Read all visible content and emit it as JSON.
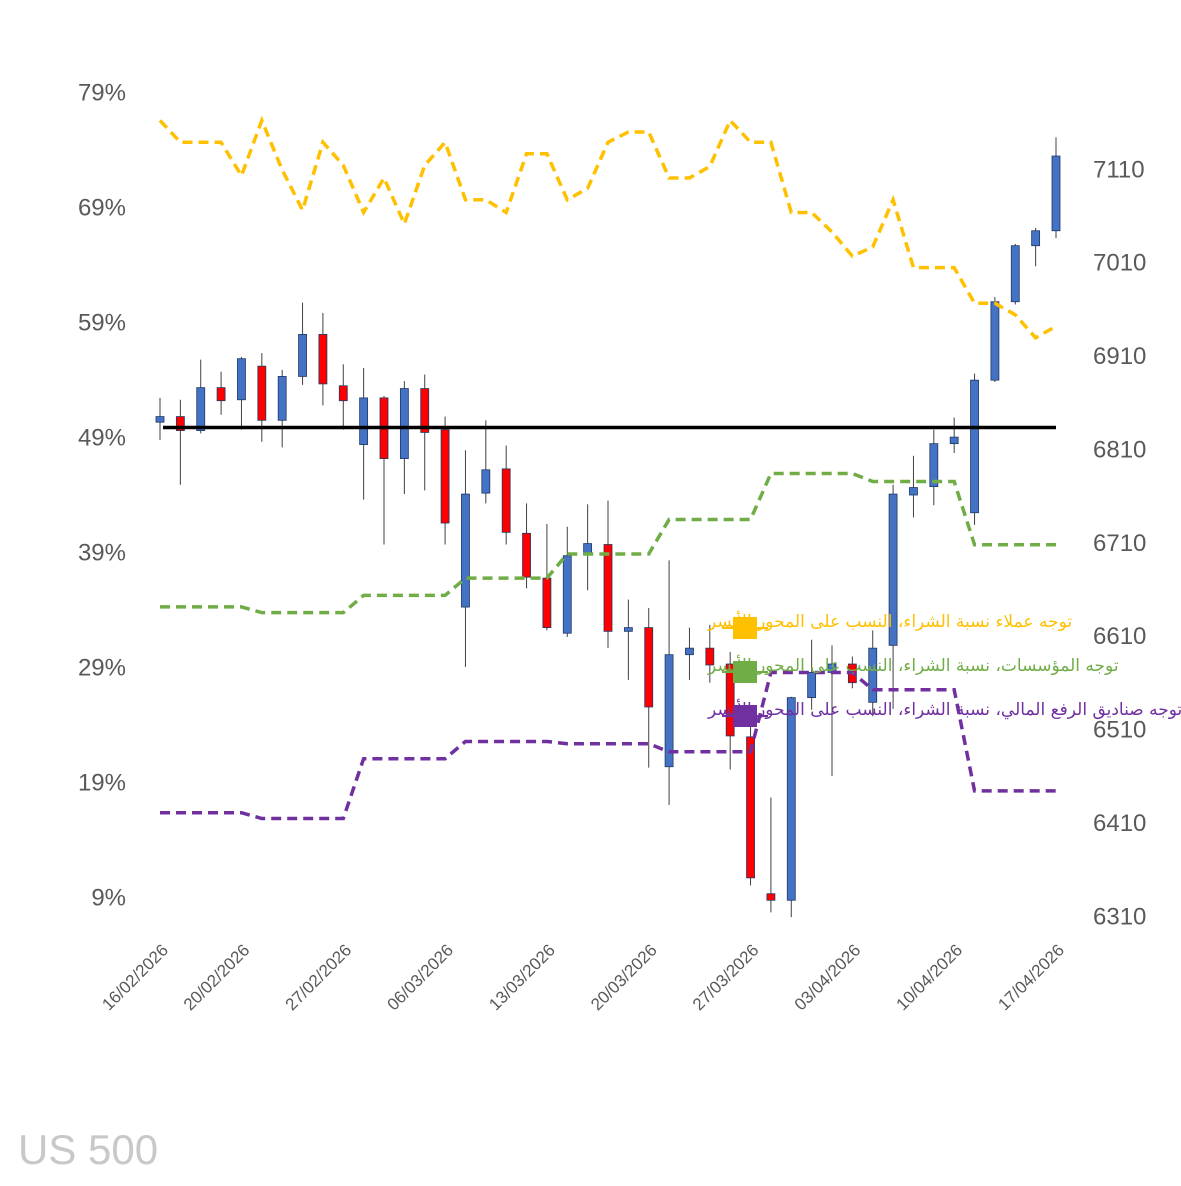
{
  "chart_data": {
    "type": "candlestick",
    "watermark": "US 500",
    "categories": [
      "16/02/2026",
      null,
      null,
      null,
      "20/02/2026",
      null,
      null,
      null,
      null,
      "27/02/2026",
      null,
      null,
      null,
      null,
      "06/03/2026",
      null,
      null,
      null,
      null,
      "13/03/2026",
      null,
      null,
      null,
      null,
      "20/03/2026",
      null,
      null,
      null,
      null,
      "27/03/2026",
      null,
      null,
      null,
      null,
      "03/04/2026",
      null,
      null,
      null,
      null,
      "10/04/2026",
      null,
      null,
      null,
      null,
      "17/04/2026"
    ],
    "ohlc": {
      "axis": "y2",
      "up_color": "#4472c4",
      "down_color": "#ff0000",
      "open": [
        6841,
        6847,
        6832,
        6878,
        6865,
        6901,
        6843,
        6890,
        6935,
        6880,
        6817,
        6867,
        6802,
        6877,
        6833,
        6643,
        6765,
        6791,
        6722,
        6674,
        6615,
        6699,
        6710,
        6617,
        6621,
        6472,
        6592,
        6599,
        6582,
        6504,
        6336,
        6329,
        6546,
        6573,
        6582,
        6541,
        6602,
        6763,
        6772,
        6818,
        6744,
        6886,
        6970,
        7030,
        7046
      ],
      "high": [
        6867,
        6865,
        6908,
        6895,
        6911,
        6915,
        6897,
        6969,
        6958,
        6903,
        6899,
        6869,
        6885,
        6892,
        6847,
        6811,
        6843,
        6816,
        6754,
        6732,
        6729,
        6753,
        6757,
        6651,
        6642,
        6693,
        6621,
        6624,
        6595,
        6532,
        6439,
        6547,
        6608,
        6602,
        6590,
        6618,
        6774,
        6805,
        6833,
        6846,
        6893,
        6975,
        7032,
        7049,
        7146
      ],
      "low": [
        6822,
        6774,
        6829,
        6849,
        6833,
        6820,
        6814,
        6881,
        6859,
        6833,
        6758,
        6710,
        6764,
        6768,
        6710,
        6579,
        6754,
        6710,
        6663,
        6618,
        6611,
        6661,
        6599,
        6565,
        6471,
        6431,
        6565,
        6562,
        6469,
        6345,
        6316,
        6311,
        6533,
        6462,
        6556,
        6526,
        6534,
        6739,
        6752,
        6808,
        6731,
        6884,
        6967,
        7008,
        7038
      ],
      "close": [
        6847,
        6832,
        6878,
        6864,
        6909,
        6843,
        6890,
        6935,
        6882,
        6864,
        6867,
        6802,
        6877,
        6830,
        6733,
        6764,
        6790,
        6723,
        6675,
        6621,
        6698,
        6711,
        6617,
        6621,
        6536,
        6592,
        6599,
        6581,
        6505,
        6353,
        6329,
        6546,
        6573,
        6582,
        6562,
        6599,
        6764,
        6771,
        6818,
        6825,
        6886,
        6970,
        7030,
        7046,
        7126
      ]
    },
    "series": [
      {
        "name": "توجه عملاء نسبة الشراء، النسب على المحور الأيسر",
        "color": "#ffc000",
        "dashed": true,
        "values": [
          76.7,
          74.8,
          74.8,
          74.8,
          71.9,
          76.7,
          72.4,
          68.9,
          74.8,
          72.8,
          68.7,
          71.7,
          67.7,
          72.8,
          74.8,
          69.8,
          69.8,
          68.7,
          73.8,
          73.8,
          69.8,
          70.8,
          74.8,
          75.7,
          75.7,
          71.7,
          71.7,
          72.7,
          76.7,
          74.8,
          74.8,
          68.7,
          68.7,
          67.0,
          64.9,
          65.7,
          69.8,
          63.9,
          63.9,
          63.9,
          60.8,
          60.8,
          59.8,
          57.8,
          58.8
        ]
      },
      {
        "name": "توجه المؤسسات، نسبة الشراء، النسب على المحور الأيسر",
        "color": "#70ad47",
        "dashed": true,
        "values": [
          34.4,
          34.4,
          34.4,
          34.4,
          34.4,
          33.9,
          33.9,
          33.9,
          33.9,
          33.9,
          35.4,
          35.4,
          35.4,
          35.4,
          35.4,
          36.9,
          36.9,
          36.9,
          36.9,
          36.9,
          39.0,
          39.0,
          39.0,
          39.0,
          39.0,
          42.0,
          42.0,
          42.0,
          42.0,
          42.0,
          46.0,
          46.0,
          46.0,
          46.0,
          46.0,
          45.3,
          45.3,
          45.3,
          45.3,
          45.3,
          39.8,
          39.8,
          39.8,
          39.8,
          39.8
        ]
      },
      {
        "name": "توجه صناديق الرفع المالي، نسبة الشراء، النسب على المحور الأيسر",
        "color": "#7030a0",
        "dashed": true,
        "values": [
          16.5,
          16.5,
          16.5,
          16.5,
          16.5,
          16.0,
          16.0,
          16.0,
          16.0,
          16.0,
          21.2,
          21.2,
          21.2,
          21.2,
          21.2,
          22.7,
          22.7,
          22.7,
          22.7,
          22.7,
          22.5,
          22.5,
          22.5,
          22.5,
          22.5,
          21.8,
          21.8,
          21.8,
          21.8,
          21.8,
          28.7,
          28.7,
          28.7,
          28.7,
          28.7,
          27.2,
          27.2,
          27.2,
          27.2,
          27.2,
          18.4,
          18.4,
          18.4,
          18.4,
          18.4
        ]
      }
    ],
    "reference_line": 50,
    "ylim": [
      9,
      79
    ],
    "yticks": [
      {
        "value": 9,
        "label": "9%"
      },
      {
        "value": 19,
        "label": "19%"
      },
      {
        "value": 29,
        "label": "29%"
      },
      {
        "value": 39,
        "label": "39%"
      },
      {
        "value": 49,
        "label": "49%"
      },
      {
        "value": 59,
        "label": "59%"
      },
      {
        "value": 69,
        "label": "69%"
      },
      {
        "value": 79,
        "label": "79%"
      }
    ],
    "y2lim": [
      6310,
      7110
    ],
    "y2ticks": [
      6310,
      6410,
      6510,
      6610,
      6710,
      6810,
      6910,
      7010,
      7110
    ],
    "grid": false
  }
}
